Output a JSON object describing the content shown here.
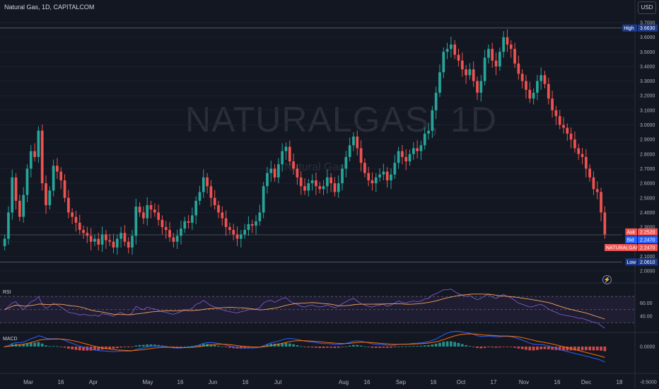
{
  "header": {
    "symbol_info": "Natural Gas, 1D, CAPITALCOM",
    "currency_button": "USD"
  },
  "watermark": {
    "main": "NATURALGAS, 1D",
    "sub": "Natural Gas"
  },
  "indicators": {
    "rsi_label": "RSI",
    "macd_label": "MACD"
  },
  "icons": {
    "alert": "flash-icon"
  },
  "colors": {
    "up": "#26a69a",
    "down": "#ef5350",
    "rsi_line": "#7e57c2",
    "rsi_ma": "#f7a35c",
    "macd_line": "#2962ff",
    "signal_line": "#ff6d00",
    "background": "#131722"
  },
  "chart_data": {
    "type": "candlestick",
    "x_tick_labels": [
      "Mar",
      "16",
      "Apr",
      "16",
      "May",
      "16",
      "Jun",
      "16",
      "Jul",
      "16",
      "Aug",
      "16",
      "Sep",
      "16",
      "Oct",
      "17",
      "Nov",
      "16",
      "Dec",
      "18"
    ],
    "y_tick_labels": [
      "3.7000",
      "3.6000",
      "3.5000",
      "3.4000",
      "3.3000",
      "3.2000",
      "3.1000",
      "3.0000",
      "2.9000",
      "2.8000",
      "2.7000",
      "2.6000",
      "2.5000",
      "2.4000",
      "2.3000",
      "2.2000",
      "2.1000",
      "2.0000"
    ],
    "ylim": [
      2.0,
      3.7
    ],
    "price_tags": [
      {
        "label": "High",
        "value": "3.6630",
        "color": "#1e3a8a"
      },
      {
        "label": "Ask",
        "value": "2.2520",
        "color": "#ef5350"
      },
      {
        "label": "Bid",
        "value": "2.2470",
        "color": "#2962ff"
      },
      {
        "label": "NATURALGAS",
        "value": "2.2470",
        "color": "#ef5350"
      },
      {
        "label": "Low",
        "value": "2.0610",
        "color": "#1e3a8a"
      }
    ],
    "rsi": {
      "ticks": [
        "60.00",
        "40.00"
      ],
      "levels": [
        70,
        50,
        30
      ]
    },
    "macd": {
      "ticks": [
        "0.0000",
        "-0.5000"
      ]
    },
    "close": [
      2.22,
      2.4,
      2.64,
      2.48,
      2.37,
      2.52,
      2.7,
      2.82,
      2.78,
      2.96,
      2.6,
      2.45,
      2.55,
      2.72,
      2.68,
      2.62,
      2.5,
      2.4,
      2.37,
      2.33,
      2.28,
      2.26,
      2.24,
      2.2,
      2.22,
      2.18,
      2.25,
      2.21,
      2.2,
      2.16,
      2.22,
      2.26,
      2.2,
      2.16,
      2.24,
      2.44,
      2.4,
      2.36,
      2.45,
      2.42,
      2.4,
      2.35,
      2.3,
      2.28,
      2.23,
      2.2,
      2.24,
      2.29,
      2.34,
      2.33,
      2.38,
      2.48,
      2.54,
      2.64,
      2.58,
      2.5,
      2.45,
      2.4,
      2.36,
      2.3,
      2.28,
      2.25,
      2.22,
      2.25,
      2.28,
      2.32,
      2.31,
      2.34,
      2.4,
      2.58,
      2.67,
      2.7,
      2.64,
      2.73,
      2.82,
      2.85,
      2.75,
      2.7,
      2.64,
      2.58,
      2.55,
      2.6,
      2.62,
      2.58,
      2.56,
      2.58,
      2.64,
      2.6,
      2.54,
      2.6,
      2.7,
      2.78,
      2.86,
      2.92,
      2.84,
      2.74,
      2.67,
      2.62,
      2.6,
      2.64,
      2.66,
      2.68,
      2.62,
      2.66,
      2.74,
      2.82,
      2.78,
      2.75,
      2.8,
      2.84,
      2.82,
      2.86,
      2.94,
      2.96,
      3.1,
      3.22,
      3.36,
      3.5,
      3.52,
      3.55,
      3.48,
      3.44,
      3.38,
      3.34,
      3.38,
      3.3,
      3.22,
      3.3,
      3.46,
      3.52,
      3.44,
      3.4,
      3.5,
      3.6,
      3.55,
      3.52,
      3.42,
      3.35,
      3.3,
      3.24,
      3.18,
      3.22,
      3.3,
      3.34,
      3.28,
      3.18,
      3.1,
      3.06,
      3.0,
      2.98,
      2.94,
      2.9,
      2.84,
      2.8,
      2.78,
      2.7,
      2.64,
      2.56,
      2.54,
      2.4,
      2.25
    ],
    "rsi_values": [
      50,
      55,
      60,
      62,
      55,
      50,
      56,
      62,
      64,
      70,
      58,
      52,
      55,
      60,
      57,
      54,
      50,
      46,
      45,
      44,
      42,
      43,
      42,
      41,
      42,
      40,
      44,
      43,
      42,
      40,
      44,
      46,
      43,
      42,
      45,
      55,
      52,
      50,
      54,
      52,
      51,
      49,
      47,
      46,
      44,
      43,
      45,
      47,
      50,
      50,
      52,
      58,
      60,
      64,
      60,
      56,
      54,
      52,
      50,
      48,
      47,
      46,
      45,
      47,
      48,
      50,
      50,
      51,
      53,
      60,
      63,
      64,
      61,
      64,
      67,
      68,
      63,
      60,
      58,
      55,
      54,
      56,
      57,
      55,
      54,
      55,
      57,
      55,
      53,
      55,
      59,
      62,
      65,
      67,
      63,
      59,
      57,
      55,
      54,
      56,
      57,
      58,
      55,
      57,
      60,
      63,
      61,
      60,
      62,
      63,
      62,
      63,
      66,
      67,
      72,
      74,
      77,
      80,
      80,
      81,
      77,
      74,
      72,
      70,
      71,
      68,
      65,
      67,
      71,
      73,
      69,
      67,
      70,
      73,
      70,
      68,
      64,
      60,
      58,
      56,
      54,
      55,
      57,
      58,
      55,
      51,
      48,
      46,
      43,
      42,
      41,
      40,
      39,
      37,
      37,
      35,
      33,
      31,
      30,
      26,
      22
    ]
  }
}
